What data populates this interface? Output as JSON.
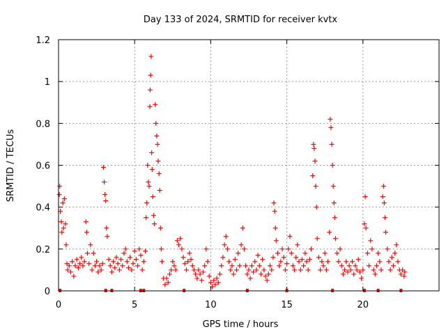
{
  "chart_data": {
    "type": "scatter",
    "title": "Day 133 of 2024, SRMTID for receiver kvtx",
    "xlabel": "GPS time / hours",
    "ylabel": "SRMTID / TECUs",
    "xlim": [
      0,
      25
    ],
    "ylim": [
      0,
      1.2
    ],
    "xticks": [
      0,
      5,
      10,
      15,
      20
    ],
    "yticks": [
      0,
      0.2,
      0.4,
      0.6,
      0.8,
      1,
      1.2
    ],
    "xtick_labels": [
      "0",
      "5",
      "10",
      "15",
      "20"
    ],
    "ytick_labels": [
      "0",
      "0.2",
      "0.4",
      "0.6",
      "0.8",
      "1",
      "1.2"
    ],
    "grid": true,
    "marker": "+",
    "series": [
      {
        "name": "SRMTID",
        "color": "#ff0000",
        "points": [
          [
            0.05,
            0.46
          ],
          [
            0.08,
            0.5
          ],
          [
            0.12,
            0.38
          ],
          [
            0.18,
            0.33
          ],
          [
            0.22,
            0.28
          ],
          [
            0.28,
            0.42
          ],
          [
            0.33,
            0.3
          ],
          [
            0.38,
            0.44
          ],
          [
            0.45,
            0.32
          ],
          [
            0.5,
            0.22
          ],
          [
            0.55,
            0.13
          ],
          [
            0.6,
            0.1
          ],
          [
            0.7,
            0.12
          ],
          [
            0.8,
            0.09
          ],
          [
            0.9,
            0.14
          ],
          [
            1.0,
            0.07
          ],
          [
            1.1,
            0.12
          ],
          [
            1.2,
            0.15
          ],
          [
            1.3,
            0.11
          ],
          [
            1.4,
            0.13
          ],
          [
            1.5,
            0.16
          ],
          [
            1.6,
            0.12
          ],
          [
            1.7,
            0.14
          ],
          [
            1.8,
            0.33
          ],
          [
            1.85,
            0.28
          ],
          [
            1.9,
            0.18
          ],
          [
            2.0,
            0.13
          ],
          [
            2.1,
            0.22
          ],
          [
            2.2,
            0.1
          ],
          [
            2.3,
            0.18
          ],
          [
            2.4,
            0.12
          ],
          [
            2.5,
            0.14
          ],
          [
            2.6,
            0.09
          ],
          [
            2.7,
            0.12
          ],
          [
            2.8,
            0.1
          ],
          [
            2.9,
            0.13
          ],
          [
            2.95,
            0.59
          ],
          [
            3.0,
            0.52
          ],
          [
            3.05,
            0.46
          ],
          [
            3.1,
            0.43
          ],
          [
            3.15,
            0.3
          ],
          [
            3.2,
            0.26
          ],
          [
            3.3,
            0.15
          ],
          [
            3.4,
            0.12
          ],
          [
            3.5,
            0.09
          ],
          [
            3.6,
            0.14
          ],
          [
            3.7,
            0.11
          ],
          [
            3.8,
            0.16
          ],
          [
            3.9,
            0.13
          ],
          [
            4.0,
            0.1
          ],
          [
            4.1,
            0.15
          ],
          [
            4.2,
            0.12
          ],
          [
            4.3,
            0.18
          ],
          [
            4.4,
            0.2
          ],
          [
            4.5,
            0.14
          ],
          [
            4.6,
            0.11
          ],
          [
            4.7,
            0.16
          ],
          [
            4.8,
            0.1
          ],
          [
            4.9,
            0.13
          ],
          [
            5.0,
            0.19
          ],
          [
            5.1,
            0.15
          ],
          [
            5.2,
            0.12
          ],
          [
            5.3,
            0.2
          ],
          [
            5.4,
            0.17
          ],
          [
            5.5,
            0.1
          ],
          [
            5.6,
            0.14
          ],
          [
            5.7,
            0.19
          ],
          [
            5.75,
            0.35
          ],
          [
            5.8,
            0.42
          ],
          [
            5.85,
            0.6
          ],
          [
            5.9,
            0.52
          ],
          [
            5.95,
            0.5
          ],
          [
            6.0,
            0.88
          ],
          [
            6.02,
            0.96
          ],
          [
            6.05,
            1.03
          ],
          [
            6.08,
            1.12
          ],
          [
            6.12,
            0.66
          ],
          [
            6.15,
            0.58
          ],
          [
            6.2,
            0.45
          ],
          [
            6.25,
            0.36
          ],
          [
            6.3,
            0.32
          ],
          [
            6.35,
            0.89
          ],
          [
            6.4,
            0.8
          ],
          [
            6.45,
            0.74
          ],
          [
            6.5,
            0.7
          ],
          [
            6.55,
            0.62
          ],
          [
            6.6,
            0.56
          ],
          [
            6.65,
            0.48
          ],
          [
            6.7,
            0.3
          ],
          [
            6.75,
            0.2
          ],
          [
            6.8,
            0.14
          ],
          [
            6.9,
            0.06
          ],
          [
            7.0,
            0.03
          ],
          [
            7.1,
            0.06
          ],
          [
            7.2,
            0.04
          ],
          [
            7.3,
            0.08
          ],
          [
            7.4,
            0.1
          ],
          [
            7.5,
            0.14
          ],
          [
            7.6,
            0.12
          ],
          [
            7.7,
            0.1
          ],
          [
            7.8,
            0.24
          ],
          [
            7.9,
            0.22
          ],
          [
            8.0,
            0.25
          ],
          [
            8.1,
            0.2
          ],
          [
            8.2,
            0.16
          ],
          [
            8.3,
            0.13
          ],
          [
            8.4,
            0.1
          ],
          [
            8.5,
            0.14
          ],
          [
            8.6,
            0.18
          ],
          [
            8.7,
            0.15
          ],
          [
            8.8,
            0.12
          ],
          [
            8.9,
            0.1
          ],
          [
            9.0,
            0.08
          ],
          [
            9.1,
            0.06
          ],
          [
            9.2,
            0.1
          ],
          [
            9.3,
            0.08
          ],
          [
            9.4,
            0.05
          ],
          [
            9.5,
            0.09
          ],
          [
            9.6,
            0.12
          ],
          [
            9.7,
            0.2
          ],
          [
            9.8,
            0.14
          ],
          [
            9.9,
            0.07
          ],
          [
            10.0,
            0.04
          ],
          [
            10.1,
            0.02
          ],
          [
            10.2,
            0.05
          ],
          [
            10.3,
            0.03
          ],
          [
            10.4,
            0.06
          ],
          [
            10.5,
            0.04
          ],
          [
            10.6,
            0.08
          ],
          [
            10.7,
            0.12
          ],
          [
            10.8,
            0.16
          ],
          [
            10.9,
            0.22
          ],
          [
            11.0,
            0.26
          ],
          [
            11.1,
            0.2
          ],
          [
            11.2,
            0.14
          ],
          [
            11.3,
            0.1
          ],
          [
            11.4,
            0.12
          ],
          [
            11.5,
            0.08
          ],
          [
            11.6,
            0.15
          ],
          [
            11.7,
            0.1
          ],
          [
            11.8,
            0.18
          ],
          [
            11.9,
            0.12
          ],
          [
            12.0,
            0.22
          ],
          [
            12.1,
            0.3
          ],
          [
            12.2,
            0.2
          ],
          [
            12.3,
            0.12
          ],
          [
            12.4,
            0.08
          ],
          [
            12.5,
            0.1
          ],
          [
            12.6,
            0.06
          ],
          [
            12.7,
            0.12
          ],
          [
            12.8,
            0.09
          ],
          [
            12.9,
            0.14
          ],
          [
            13.0,
            0.1
          ],
          [
            13.1,
            0.17
          ],
          [
            13.2,
            0.12
          ],
          [
            13.3,
            0.08
          ],
          [
            13.4,
            0.15
          ],
          [
            13.5,
            0.1
          ],
          [
            13.6,
            0.07
          ],
          [
            13.7,
            0.05
          ],
          [
            13.8,
            0.08
          ],
          [
            13.9,
            0.12
          ],
          [
            14.0,
            0.1
          ],
          [
            14.1,
            0.16
          ],
          [
            14.15,
            0.42
          ],
          [
            14.2,
            0.38
          ],
          [
            14.25,
            0.3
          ],
          [
            14.3,
            0.24
          ],
          [
            14.4,
            0.18
          ],
          [
            14.5,
            0.12
          ],
          [
            14.6,
            0.14
          ],
          [
            14.7,
            0.2
          ],
          [
            14.8,
            0.16
          ],
          [
            14.9,
            0.1
          ],
          [
            15.0,
            0.13
          ],
          [
            15.1,
            0.2
          ],
          [
            15.2,
            0.26
          ],
          [
            15.3,
            0.18
          ],
          [
            15.4,
            0.12
          ],
          [
            15.5,
            0.1
          ],
          [
            15.6,
            0.16
          ],
          [
            15.7,
            0.22
          ],
          [
            15.8,
            0.14
          ],
          [
            15.9,
            0.1
          ],
          [
            16.0,
            0.15
          ],
          [
            16.1,
            0.12
          ],
          [
            16.2,
            0.18
          ],
          [
            16.3,
            0.14
          ],
          [
            16.4,
            0.1
          ],
          [
            16.5,
            0.15
          ],
          [
            16.6,
            0.2
          ],
          [
            16.7,
            0.55
          ],
          [
            16.75,
            0.7
          ],
          [
            16.8,
            0.68
          ],
          [
            16.85,
            0.62
          ],
          [
            16.9,
            0.5
          ],
          [
            16.95,
            0.4
          ],
          [
            17.0,
            0.25
          ],
          [
            17.1,
            0.16
          ],
          [
            17.2,
            0.1
          ],
          [
            17.3,
            0.14
          ],
          [
            17.4,
            0.12
          ],
          [
            17.5,
            0.18
          ],
          [
            17.6,
            0.1
          ],
          [
            17.7,
            0.14
          ],
          [
            17.8,
            0.28
          ],
          [
            17.85,
            0.82
          ],
          [
            17.9,
            0.78
          ],
          [
            17.95,
            0.7
          ],
          [
            18.0,
            0.6
          ],
          [
            18.05,
            0.5
          ],
          [
            18.1,
            0.42
          ],
          [
            18.15,
            0.35
          ],
          [
            18.2,
            0.25
          ],
          [
            18.3,
            0.18
          ],
          [
            18.4,
            0.14
          ],
          [
            18.5,
            0.2
          ],
          [
            18.6,
            0.12
          ],
          [
            18.7,
            0.08
          ],
          [
            18.8,
            0.1
          ],
          [
            18.9,
            0.14
          ],
          [
            19.0,
            0.09
          ],
          [
            19.1,
            0.12
          ],
          [
            19.2,
            0.1
          ],
          [
            19.3,
            0.14
          ],
          [
            19.4,
            0.08
          ],
          [
            19.5,
            0.12
          ],
          [
            19.6,
            0.1
          ],
          [
            19.7,
            0.15
          ],
          [
            19.8,
            0.09
          ],
          [
            19.9,
            0.06
          ],
          [
            20.0,
            0.1
          ],
          [
            20.1,
            0.32
          ],
          [
            20.15,
            0.45
          ],
          [
            20.2,
            0.3
          ],
          [
            20.3,
            0.18
          ],
          [
            20.4,
            0.12
          ],
          [
            20.5,
            0.24
          ],
          [
            20.6,
            0.2
          ],
          [
            20.7,
            0.1
          ],
          [
            20.8,
            0.08
          ],
          [
            20.9,
            0.12
          ],
          [
            21.0,
            0.18
          ],
          [
            21.1,
            0.14
          ],
          [
            21.2,
            0.1
          ],
          [
            21.3,
            0.45
          ],
          [
            21.35,
            0.5
          ],
          [
            21.4,
            0.42
          ],
          [
            21.45,
            0.35
          ],
          [
            21.5,
            0.28
          ],
          [
            21.6,
            0.2
          ],
          [
            21.7,
            0.14
          ],
          [
            21.8,
            0.1
          ],
          [
            21.9,
            0.16
          ],
          [
            22.0,
            0.12
          ],
          [
            22.1,
            0.18
          ],
          [
            22.2,
            0.22
          ],
          [
            22.3,
            0.14
          ],
          [
            22.4,
            0.1
          ],
          [
            22.5,
            0.08
          ],
          [
            22.6,
            0.1
          ],
          [
            22.7,
            0.07
          ],
          [
            22.75,
            0.09
          ]
        ]
      }
    ],
    "zero_markers_x": [
      0.1,
      3.1,
      3.5,
      5.4,
      5.6,
      8.25,
      12.4,
      15.0,
      18.0,
      20.1,
      21.0,
      22.5
    ]
  }
}
